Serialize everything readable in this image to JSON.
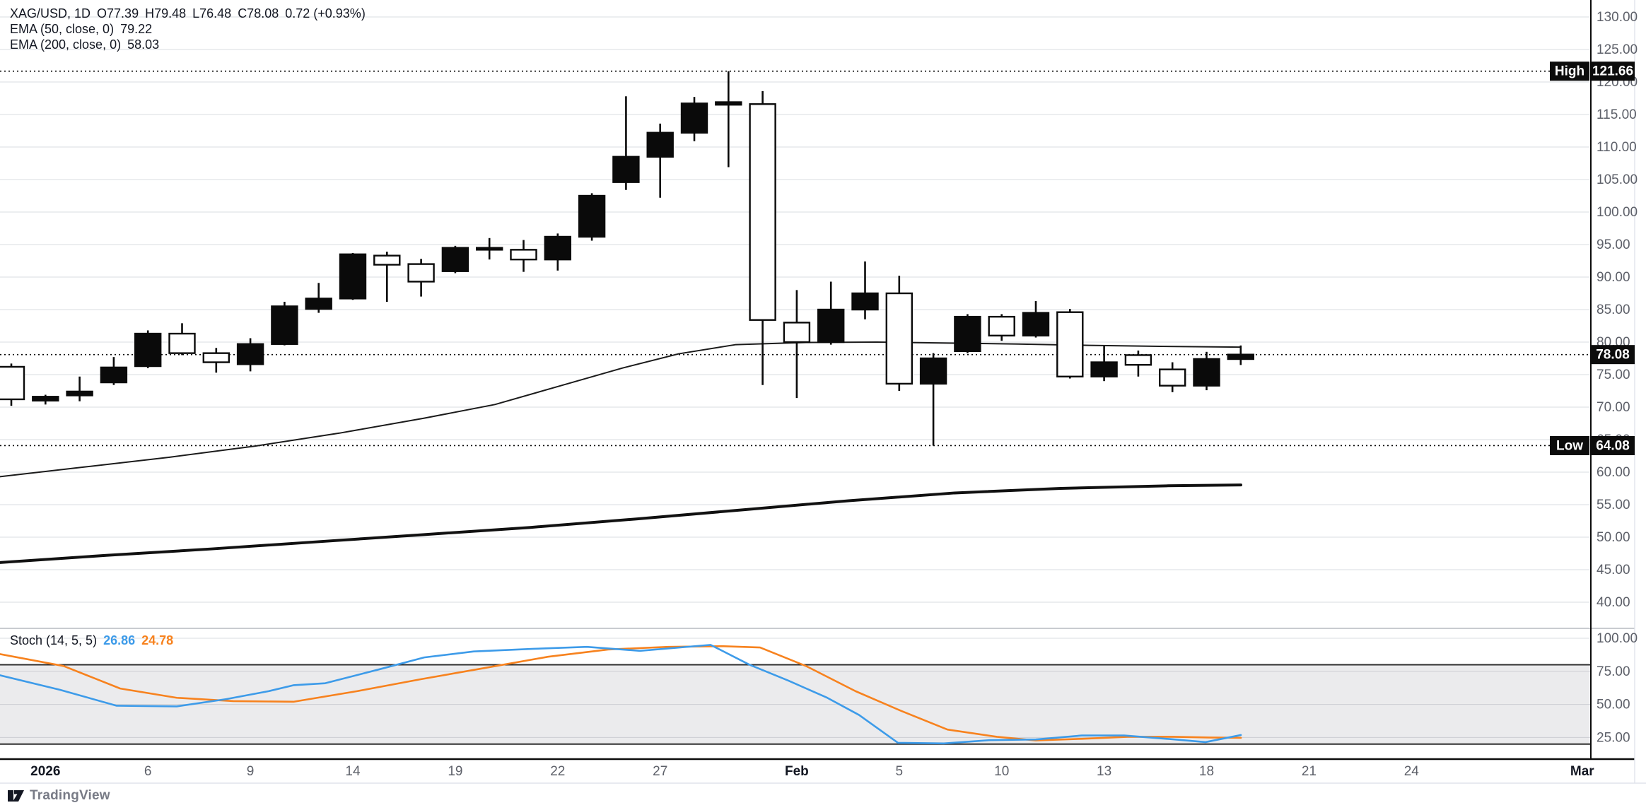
{
  "legend": {
    "row1": {
      "symbol": "XAG/USD, 1D",
      "open": "O77.39",
      "high": "H79.48",
      "low": "L76.48",
      "close": "C78.08",
      "change": "0.72 (+0.93%)"
    },
    "ema50_label": "EMA (50, close, 0)",
    "ema50_value": "79.22",
    "ema200_label": "EMA (200, close, 0)",
    "ema200_value": "58.03"
  },
  "stoch_legend": {
    "label": "Stoch (14, 5, 5)",
    "k_value": "26.86",
    "d_value": "24.78"
  },
  "price_tags": {
    "high_word": "High",
    "high_value": "121.66",
    "last_value": "78.08",
    "low_word": "Low",
    "low_value": "64.08"
  },
  "watermark_text": "TradingView",
  "colors": {
    "background": "#ffffff",
    "grid": "#dadce0",
    "candle": "#0a0a0a",
    "ema50": "#1b1b1b",
    "ema200": "#111111",
    "stoch_k": "#3d9be9",
    "stoch_d": "#f7821e",
    "stoch_band_line": "#2f2f2f",
    "stoch_fill": "rgba(130,133,140,0.16)",
    "axis_text": "#5d6069",
    "axis_text_strong": "#131722",
    "tag_box": "#0c0c0c",
    "tag_text": "#ffffff",
    "separator": "#c9cbd0",
    "axis_border": "#0c0c0c",
    "light_border": "#e0e3eb"
  },
  "chart_data": {
    "type": "candlestick",
    "title": "XAG/USD 1D with EMA(50), EMA(200) and Stochastic (14,5,5)",
    "price_pane": {
      "y_ticks": [
        130,
        125,
        120,
        115,
        110,
        105,
        100,
        95,
        90,
        85,
        80,
        75,
        70,
        65,
        60,
        55,
        50,
        45,
        40
      ],
      "y_axis_range_visible": [
        37.2,
        132.6
      ],
      "grid": true,
      "price_lines": {
        "high": 121.66,
        "last": 78.08,
        "low": 64.08
      },
      "candles_ohlc": [
        [
          76.2,
          76.7,
          70.2,
          71.2
        ],
        [
          71.0,
          71.9,
          70.4,
          71.6
        ],
        [
          71.8,
          74.7,
          70.9,
          72.4
        ],
        [
          73.8,
          77.7,
          73.4,
          76.1
        ],
        [
          76.3,
          81.8,
          76.0,
          81.3
        ],
        [
          81.3,
          82.9,
          78.0,
          78.3
        ],
        [
          78.3,
          79.1,
          75.3,
          76.9
        ],
        [
          76.6,
          80.6,
          75.5,
          79.7
        ],
        [
          79.7,
          86.2,
          79.5,
          85.5
        ],
        [
          85.1,
          89.1,
          84.5,
          86.7
        ],
        [
          86.7,
          93.7,
          86.5,
          93.5
        ],
        [
          93.3,
          93.9,
          86.2,
          91.9
        ],
        [
          92.0,
          92.8,
          87.0,
          89.3
        ],
        [
          90.9,
          94.8,
          90.6,
          94.5
        ],
        [
          94.2,
          96.0,
          92.7,
          94.5
        ],
        [
          94.2,
          95.7,
          90.8,
          92.7
        ],
        [
          92.7,
          96.7,
          91.0,
          96.2
        ],
        [
          96.2,
          102.9,
          95.6,
          102.5
        ],
        [
          104.6,
          117.8,
          103.4,
          108.5
        ],
        [
          108.5,
          113.6,
          102.2,
          112.2
        ],
        [
          112.2,
          117.7,
          110.9,
          116.7
        ],
        [
          116.5,
          121.66,
          106.9,
          116.9
        ],
        [
          116.6,
          118.6,
          73.4,
          83.4
        ],
        [
          83.0,
          88.0,
          71.4,
          80.0
        ],
        [
          80.0,
          89.3,
          79.6,
          85.0
        ],
        [
          85.0,
          92.4,
          83.5,
          87.5
        ],
        [
          87.5,
          90.2,
          72.5,
          73.6
        ],
        [
          73.6,
          78.3,
          64.08,
          77.5
        ],
        [
          78.6,
          84.3,
          78.3,
          83.9
        ],
        [
          83.9,
          84.3,
          80.2,
          81.0
        ],
        [
          81.0,
          86.3,
          80.7,
          84.5
        ],
        [
          84.6,
          85.1,
          74.4,
          74.7
        ],
        [
          74.7,
          79.4,
          74.0,
          76.9
        ],
        [
          78.0,
          78.7,
          74.7,
          76.5
        ],
        [
          75.8,
          76.9,
          72.3,
          73.3
        ],
        [
          73.3,
          78.5,
          72.6,
          77.4
        ],
        [
          77.39,
          79.48,
          76.48,
          78.08
        ]
      ],
      "ema50_points": [
        [
          0,
          59.3
        ],
        [
          120,
          60.8
        ],
        [
          240,
          62.3
        ],
        [
          360,
          64.0
        ],
        [
          480,
          66.0
        ],
        [
          600,
          68.3
        ],
        [
          700,
          70.4
        ],
        [
          790,
          73.2
        ],
        [
          880,
          76.0
        ],
        [
          960,
          78.2
        ],
        [
          1040,
          79.6
        ],
        [
          1140,
          79.95
        ],
        [
          1240,
          80.0
        ],
        [
          1340,
          79.85
        ],
        [
          1440,
          79.7
        ],
        [
          1540,
          79.5
        ],
        [
          1640,
          79.35
        ],
        [
          1755,
          79.22
        ]
      ],
      "ema200_points": [
        [
          0,
          46.1
        ],
        [
          150,
          47.2
        ],
        [
          300,
          48.2
        ],
        [
          450,
          49.3
        ],
        [
          600,
          50.4
        ],
        [
          750,
          51.5
        ],
        [
          900,
          52.8
        ],
        [
          1050,
          54.2
        ],
        [
          1200,
          55.6
        ],
        [
          1350,
          56.8
        ],
        [
          1500,
          57.5
        ],
        [
          1650,
          57.9
        ],
        [
          1755,
          58.03
        ]
      ]
    },
    "stoch_pane": {
      "y_ticks": [
        100,
        75,
        50,
        25
      ],
      "upper_band": 80,
      "lower_band": 20,
      "k_points": [
        [
          0,
          72
        ],
        [
          85,
          61
        ],
        [
          165,
          49
        ],
        [
          250,
          48.5
        ],
        [
          320,
          54
        ],
        [
          380,
          60
        ],
        [
          415,
          64.5
        ],
        [
          460,
          66
        ],
        [
          540,
          77
        ],
        [
          600,
          85.5
        ],
        [
          670,
          90
        ],
        [
          755,
          92
        ],
        [
          830,
          93.5
        ],
        [
          905,
          90.5
        ],
        [
          1005,
          95
        ],
        [
          1060,
          80
        ],
        [
          1115,
          68
        ],
        [
          1170,
          55
        ],
        [
          1215,
          42
        ],
        [
          1270,
          21
        ],
        [
          1335,
          20.5
        ],
        [
          1400,
          23
        ],
        [
          1465,
          23.5
        ],
        [
          1530,
          26.5
        ],
        [
          1590,
          26.5
        ],
        [
          1650,
          24
        ],
        [
          1705,
          21.5
        ],
        [
          1755,
          26.86
        ]
      ],
      "d_points": [
        [
          0,
          88
        ],
        [
          90,
          79
        ],
        [
          170,
          62
        ],
        [
          250,
          55
        ],
        [
          330,
          52.5
        ],
        [
          415,
          52
        ],
        [
          505,
          60
        ],
        [
          595,
          69
        ],
        [
          680,
          77
        ],
        [
          775,
          86
        ],
        [
          860,
          91.5
        ],
        [
          945,
          93.5
        ],
        [
          1020,
          94
        ],
        [
          1075,
          93
        ],
        [
          1140,
          79
        ],
        [
          1210,
          60
        ],
        [
          1275,
          45
        ],
        [
          1340,
          31
        ],
        [
          1410,
          25.5
        ],
        [
          1465,
          22.8
        ],
        [
          1530,
          24
        ],
        [
          1595,
          25.5
        ],
        [
          1660,
          25.5
        ],
        [
          1710,
          25
        ],
        [
          1755,
          24.78
        ]
      ]
    },
    "x_axis": {
      "ticks": [
        {
          "label": "2026",
          "index": 2,
          "strong": true
        },
        {
          "label": "6",
          "index": 5
        },
        {
          "label": "9",
          "index": 8
        },
        {
          "label": "14",
          "index": 11
        },
        {
          "label": "19",
          "index": 14
        },
        {
          "label": "22",
          "index": 17
        },
        {
          "label": "27",
          "index": 20
        },
        {
          "label": "Feb",
          "index": 24,
          "strong": true
        },
        {
          "label": "5",
          "index": 27
        },
        {
          "label": "10",
          "index": 30
        },
        {
          "label": "13",
          "index": 33
        },
        {
          "label": "18",
          "index": 36
        },
        {
          "label": "21",
          "index": 39
        },
        {
          "label": "24",
          "index": 42
        },
        {
          "label": "Mar",
          "index": 47,
          "strong": true
        }
      ]
    }
  }
}
